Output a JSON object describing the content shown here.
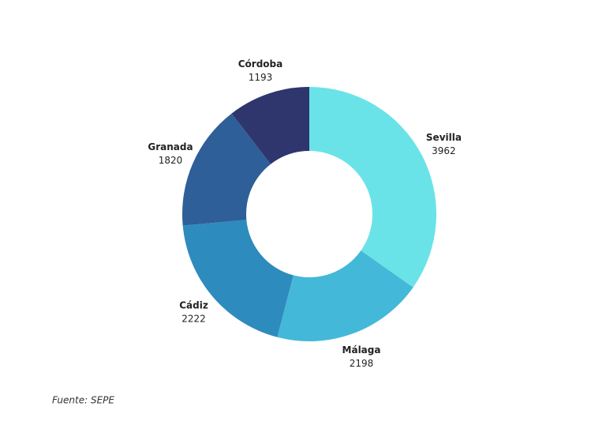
{
  "chart_data": {
    "type": "donut",
    "categories": [
      "Sevilla",
      "Málaga",
      "Cádiz",
      "Granada",
      "Córdoba"
    ],
    "values": [
      3962,
      2198,
      2222,
      1820,
      1193
    ],
    "colors": [
      "#6ae3e8",
      "#44b8d8",
      "#2e8bbd",
      "#2e5f98",
      "#2f356d"
    ],
    "source": "Fuente: SEPE"
  }
}
